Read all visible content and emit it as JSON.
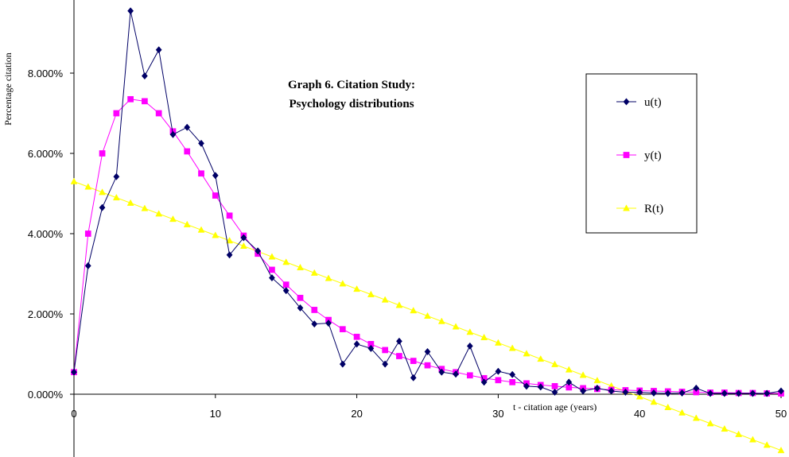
{
  "chart_data": {
    "type": "line",
    "title_line1": "Graph 6.  Citation Study:",
    "title_line2": "Psychology distributions",
    "xlabel": "t - citation age (years)",
    "ylabel": "Percentage citation",
    "xlim": [
      0,
      50
    ],
    "ylim": [
      -1.5,
      9.8
    ],
    "x_ticks": [
      0,
      10,
      20,
      30,
      40,
      50
    ],
    "y_ticks": [
      0,
      2,
      4,
      6,
      8
    ],
    "y_tick_labels": [
      "0.000%",
      "2.000%",
      "4.000%",
      "6.000%",
      "8.000%"
    ],
    "grid": false,
    "legend_position": "right",
    "series": [
      {
        "name": "u(t)",
        "color": "#000066",
        "marker": "diamond",
        "x": [
          0,
          1,
          2,
          3,
          4,
          5,
          6,
          7,
          8,
          9,
          10,
          11,
          12,
          13,
          14,
          15,
          16,
          17,
          18,
          19,
          20,
          21,
          22,
          23,
          24,
          25,
          26,
          27,
          28,
          29,
          30,
          31,
          32,
          33,
          34,
          35,
          36,
          37,
          38,
          39,
          40,
          41,
          42,
          43,
          44,
          45,
          46,
          47,
          48,
          49,
          50
        ],
        "values": [
          0.55,
          3.2,
          4.65,
          5.42,
          9.55,
          7.93,
          8.58,
          6.47,
          6.65,
          6.25,
          5.45,
          3.47,
          3.9,
          3.57,
          2.9,
          2.58,
          2.15,
          1.75,
          1.77,
          0.75,
          1.25,
          1.14,
          0.75,
          1.32,
          0.41,
          1.06,
          0.55,
          0.5,
          1.2,
          0.3,
          0.57,
          0.49,
          0.2,
          0.18,
          0.05,
          0.3,
          0.08,
          0.15,
          0.08,
          0.05,
          0.05,
          0.03,
          0.02,
          0.03,
          0.15,
          0.02,
          0.02,
          0.02,
          0.02,
          0.02,
          0.08
        ]
      },
      {
        "name": "y(t)",
        "color": "#FF00FF",
        "marker": "square",
        "x": [
          0,
          1,
          2,
          3,
          4,
          5,
          6,
          7,
          8,
          9,
          10,
          11,
          12,
          13,
          14,
          15,
          16,
          17,
          18,
          19,
          20,
          21,
          22,
          23,
          24,
          25,
          26,
          27,
          28,
          29,
          30,
          31,
          32,
          33,
          34,
          35,
          36,
          37,
          38,
          39,
          40,
          41,
          42,
          43,
          44,
          45,
          46,
          47,
          48,
          49,
          50
        ],
        "values": [
          0.55,
          4.0,
          6.0,
          7.0,
          7.35,
          7.3,
          7.0,
          6.55,
          6.05,
          5.5,
          4.95,
          4.45,
          3.95,
          3.5,
          3.1,
          2.73,
          2.4,
          2.1,
          1.85,
          1.62,
          1.43,
          1.25,
          1.1,
          0.95,
          0.83,
          0.72,
          0.63,
          0.55,
          0.47,
          0.4,
          0.35,
          0.3,
          0.27,
          0.23,
          0.2,
          0.17,
          0.15,
          0.13,
          0.11,
          0.1,
          0.09,
          0.08,
          0.07,
          0.06,
          0.05,
          0.04,
          0.04,
          0.03,
          0.03,
          0.02,
          0.02
        ]
      },
      {
        "name": "R(t)",
        "color": "#FFFF00",
        "marker": "triangle",
        "x": [
          0,
          1,
          2,
          3,
          4,
          5,
          6,
          7,
          8,
          9,
          10,
          11,
          12,
          13,
          14,
          15,
          16,
          17,
          18,
          19,
          20,
          21,
          22,
          23,
          24,
          25,
          26,
          27,
          28,
          29,
          30,
          31,
          32,
          33,
          34,
          35,
          36,
          37,
          38,
          39,
          40,
          41,
          42,
          43,
          44,
          45,
          46,
          47,
          48,
          49,
          50
        ],
        "values": [
          5.3,
          5.166,
          5.032,
          4.898,
          4.764,
          4.63,
          4.496,
          4.362,
          4.228,
          4.094,
          3.96,
          3.826,
          3.692,
          3.558,
          3.424,
          3.29,
          3.156,
          3.022,
          2.888,
          2.754,
          2.62,
          2.486,
          2.352,
          2.218,
          2.084,
          1.95,
          1.816,
          1.682,
          1.548,
          1.414,
          1.28,
          1.146,
          1.012,
          0.878,
          0.744,
          0.61,
          0.476,
          0.342,
          0.208,
          0.074,
          -0.06,
          -0.194,
          -0.328,
          -0.462,
          -0.596,
          -0.73,
          -0.864,
          -0.998,
          -1.132,
          -1.266,
          -1.4
        ]
      }
    ]
  }
}
